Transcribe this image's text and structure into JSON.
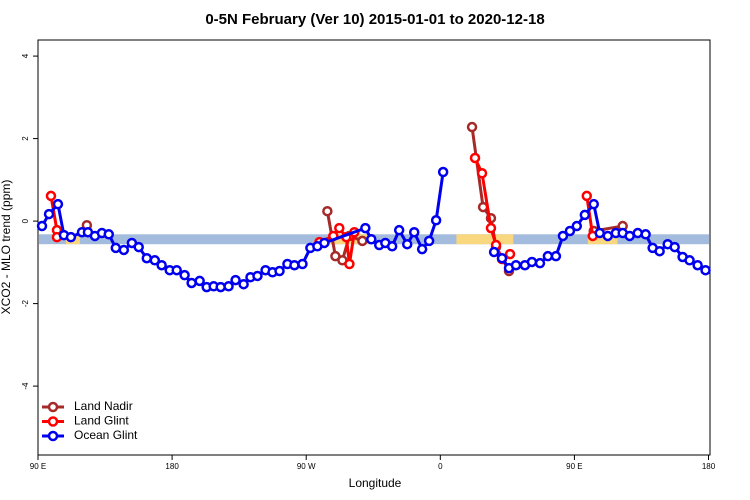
{
  "chart_data": {
    "type": "line",
    "title": "0-5N February (Ver 10)   2015-01-01 to 2020-12-18",
    "x_label": "Longitude",
    "y_label": "XCO2 - MLO trend (ppm)",
    "xlim": [
      90,
      541
    ],
    "ylim": [
      -5.67,
      4.39
    ],
    "xticks": [
      {
        "value": 90,
        "label": "90 E"
      },
      {
        "value": 180,
        "label": "180"
      },
      {
        "value": 270,
        "label": "90 W"
      },
      {
        "value": 360,
        "label": "0"
      },
      {
        "value": 450,
        "label": "90 E"
      },
      {
        "value": 540,
        "label": "180"
      }
    ],
    "yticks": [
      -4,
      -2,
      0,
      2,
      4
    ],
    "reference_band": {
      "color": "#a3bbdc",
      "range": [
        -0.56,
        -0.32
      ],
      "highlight_color": "#f9d77e",
      "highlights": [
        [
          108.8,
          118.1
        ],
        [
          285,
          312
        ],
        [
          370.8,
          409
        ],
        [
          459,
          479
        ]
      ]
    },
    "legend": "bottom-left",
    "series": [
      {
        "name": "Land Nadir",
        "color": "#a52a2a",
        "x": [
          122.8,
          null,
          284.2,
          289.6,
          294.3,
          299.0,
          307.7,
          null,
          381.3,
          388.7,
          394.0,
          397.4,
          406.1,
          null,
          463.0,
          482.4
        ],
        "values": [
          -0.1,
          null,
          0.24,
          -0.85,
          -0.95,
          -0.36,
          -0.48,
          null,
          2.28,
          0.34,
          0.07,
          -0.63,
          -1.21,
          null,
          -0.24,
          -0.12
        ]
      },
      {
        "name": "Land Glint",
        "color": "#ff0000",
        "x": [
          98.7,
          102.7,
          102.7,
          null,
          278.9,
          288.2,
          292.2,
          296.9,
          299.0,
          302.3,
          null,
          383.3,
          388.0,
          394.0,
          397.4,
          401.4,
          406.8,
          null,
          458.3,
          462.3
        ],
        "values": [
          0.61,
          -0.22,
          -0.39,
          null,
          -0.51,
          -0.36,
          -0.17,
          -0.39,
          -1.04,
          -0.27,
          null,
          1.53,
          1.16,
          -0.17,
          -0.58,
          -0.92,
          -0.8,
          null,
          0.61,
          -0.36
        ]
      },
      {
        "name": "Ocean Glint",
        "color": "#0000ee",
        "x": [
          92.7,
          97.4,
          103.4,
          107.4,
          112.1,
          119.5,
          123.5,
          128.2,
          132.9,
          137.5,
          142.2,
          147.6,
          153.0,
          157.6,
          163.0,
          168.4,
          173.0,
          178.4,
          183.1,
          188.4,
          193.1,
          198.5,
          203.2,
          207.9,
          212.6,
          217.9,
          222.6,
          228.0,
          232.6,
          237.3,
          242.7,
          247.4,
          252.1,
          257.4,
          262.1,
          267.5,
          272.8,
          277.5,
          282.2,
          309.7,
          313.7,
          319.0,
          323.1,
          327.7,
          332.4,
          337.8,
          342.5,
          347.8,
          352.5,
          357.2,
          361.9,
          null,
          396.1,
          401.4,
          406.1,
          410.8,
          416.8,
          421.5,
          426.9,
          432.2,
          437.6,
          442.3,
          447.0,
          451.6,
          457.0,
          463.0,
          467.0,
          472.4,
          477.8,
          482.4,
          487.1,
          492.5,
          497.8,
          502.5,
          507.2,
          512.6,
          517.3,
          522.6,
          527.3,
          532.7,
          538.0
        ],
        "values": [
          -0.12,
          0.17,
          0.41,
          -0.34,
          -0.39,
          -0.27,
          -0.27,
          -0.36,
          -0.29,
          -0.32,
          -0.65,
          -0.7,
          -0.53,
          -0.63,
          -0.9,
          -0.95,
          -1.07,
          -1.19,
          -1.19,
          -1.31,
          -1.5,
          -1.45,
          -1.6,
          -1.58,
          -1.6,
          -1.58,
          -1.43,
          -1.53,
          -1.36,
          -1.33,
          -1.19,
          -1.24,
          -1.21,
          -1.04,
          -1.07,
          -1.04,
          -0.65,
          -0.61,
          -0.53,
          -0.17,
          -0.44,
          -0.58,
          -0.53,
          -0.61,
          -0.22,
          -0.56,
          -0.27,
          -0.68,
          -0.48,
          0.02,
          1.19,
          null,
          -0.75,
          -0.9,
          -1.14,
          -1.07,
          -1.07,
          -0.99,
          -1.02,
          -0.85,
          -0.85,
          -0.36,
          -0.24,
          -0.12,
          0.15,
          0.41,
          -0.29,
          -0.36,
          -0.29,
          -0.29,
          -0.36,
          -0.29,
          -0.32,
          -0.65,
          -0.73,
          -0.56,
          -0.63,
          -0.87,
          -0.95,
          -1.07,
          -1.19
        ]
      }
    ]
  }
}
